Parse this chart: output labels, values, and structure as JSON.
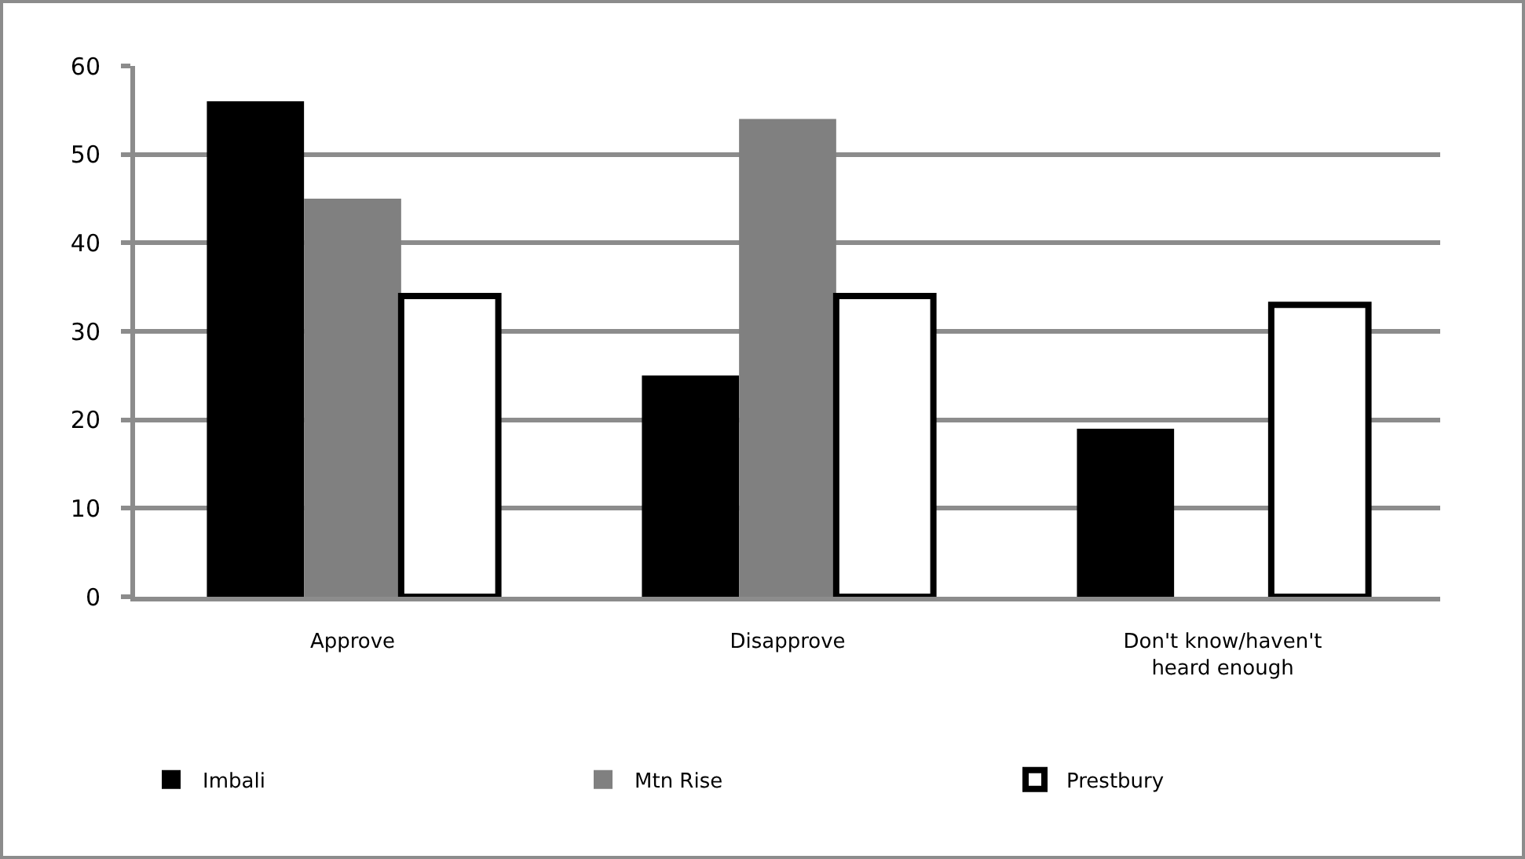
{
  "chart_data": {
    "type": "bar",
    "categories": [
      "Approve",
      "Disapprove",
      "Don't know/haven't heard enough"
    ],
    "series": [
      {
        "name": "Imbali",
        "color": "#000000",
        "values": [
          56,
          25,
          19
        ]
      },
      {
        "name": "Mtn Rise",
        "color": "#808080",
        "values": [
          45,
          54,
          0
        ]
      },
      {
        "name": "Prestbury",
        "color": "#ffffff",
        "values": [
          34,
          34,
          33
        ]
      }
    ],
    "ylim": [
      0,
      60
    ],
    "yticks": [
      0,
      10,
      20,
      30,
      40,
      50,
      60
    ],
    "grid": "y",
    "legend": "bottom"
  }
}
